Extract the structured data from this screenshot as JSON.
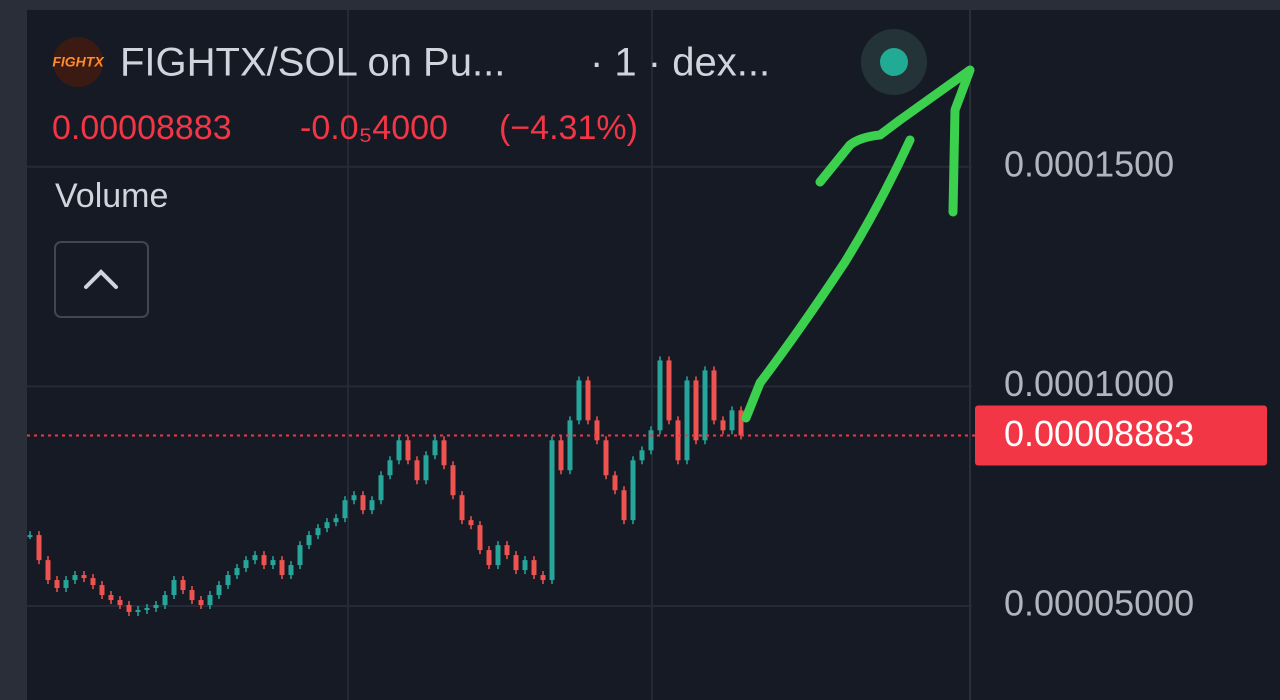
{
  "header": {
    "logo_text": "FIGHTX",
    "pair": "FIGHTX/SOL on Pu...",
    "interval": "· 1 · dex...",
    "change": "-0.0₅4000",
    "change_pct": "(−4.31%)",
    "volume_label": "Volume"
  },
  "chart_data": {
    "type": "candlestick",
    "values": [
      6.614e-05,
      6.045e-05,
      5.591e-05,
      5.409e-05,
      5.591e-05,
      5.705e-05,
      5.636e-05,
      5.477e-05,
      5.25e-05,
      5.136e-05,
      5.023e-05,
      4.864e-05,
      4.909e-05,
      4.955e-05,
      5.023e-05,
      5.25e-05,
      5.591e-05,
      5.364e-05,
      5.136e-05,
      5.023e-05,
      5.25e-05,
      5.477e-05,
      5.705e-05,
      5.864e-05,
      6.045e-05,
      6.159e-05,
      5.932e-05,
      6.045e-05,
      5.705e-05,
      5.932e-05,
      6.386e-05,
      6.614e-05,
      6.773e-05,
      6.909e-05,
      7e-05,
      7.409e-05,
      7.523e-05,
      7.182e-05,
      7.409e-05,
      7.977e-05,
      8.318e-05,
      8.773e-05,
      8.318e-05,
      7.864e-05,
      8.432e-05,
      8.773e-05,
      8.205e-05,
      7.523e-05,
      6.955e-05,
      6.841e-05,
      6.273e-05,
      5.932e-05,
      6.386e-05,
      6.159e-05,
      5.818e-05,
      6.045e-05,
      5.705e-05,
      5.591e-05,
      8.773e-05,
      8.091e-05,
      9.227e-05,
      0.00010136,
      9.227e-05,
      8.773e-05,
      7.977e-05,
      7.636e-05,
      6.955e-05,
      8.318e-05,
      8.545e-05,
      9e-05,
      0.00010591,
      9.227e-05,
      8.318e-05,
      0.00010136,
      8.773e-05,
      0.00010364,
      9.227e-05,
      9e-05,
      9.455e-05,
      8.883e-05
    ],
    "up_color": "#26a69a",
    "down_color": "#ef5350",
    "last_price": 8.883e-05,
    "ylim": [
      2.86e-05,
      0.0001857
    ],
    "yticks": [
      {
        "value": 5e-05,
        "label": "0.00005000"
      },
      {
        "value": 0.0001,
        "label": "0.0001000"
      },
      {
        "value": 0.00015,
        "label": "0.0001500"
      }
    ],
    "grid": true
  }
}
